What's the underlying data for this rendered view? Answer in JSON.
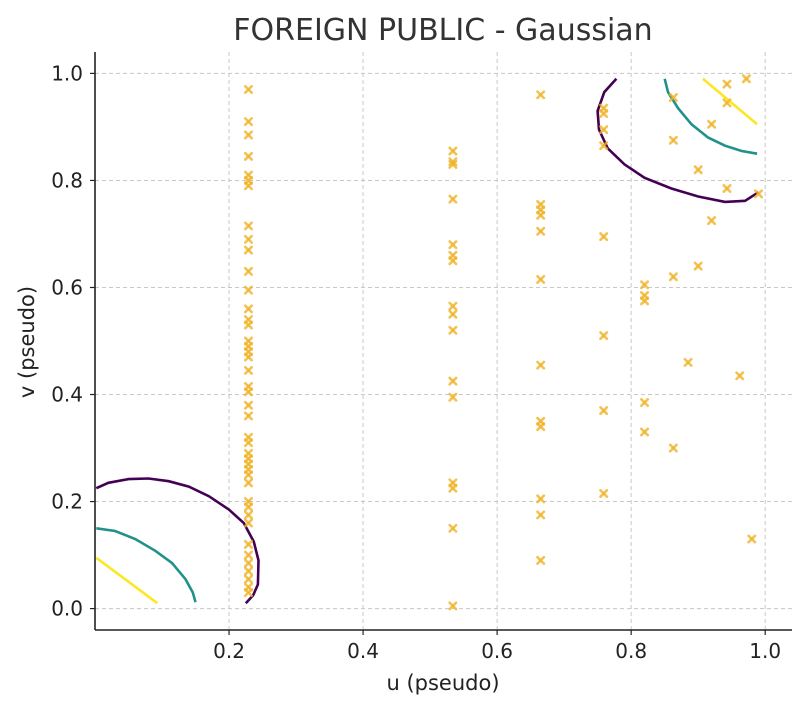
{
  "chart_data": {
    "type": "scatter",
    "title": "FOREIGN PUBLIC - Gaussian",
    "xlabel": "u (pseudo)",
    "ylabel": "v (pseudo)",
    "xlim": [
      0.0,
      1.04
    ],
    "ylim": [
      -0.04,
      1.04
    ],
    "xticks": [
      0.2,
      0.4,
      0.6,
      0.8,
      1.0
    ],
    "yticks": [
      0.0,
      0.2,
      0.4,
      0.6,
      0.8,
      1.0
    ],
    "xtick_labels": [
      "0.2",
      "0.4",
      "0.6",
      "0.8",
      "1.0"
    ],
    "ytick_labels": [
      "0.0",
      "0.2",
      "0.4",
      "0.6",
      "0.8",
      "1.0"
    ],
    "grid": true,
    "marker": "x",
    "point_color": "#f0b429",
    "points": [
      [
        0.229,
        0.97
      ],
      [
        0.229,
        0.91
      ],
      [
        0.229,
        0.885
      ],
      [
        0.229,
        0.845
      ],
      [
        0.229,
        0.81
      ],
      [
        0.229,
        0.8
      ],
      [
        0.229,
        0.79
      ],
      [
        0.229,
        0.715
      ],
      [
        0.229,
        0.69
      ],
      [
        0.229,
        0.67
      ],
      [
        0.229,
        0.63
      ],
      [
        0.229,
        0.595
      ],
      [
        0.229,
        0.56
      ],
      [
        0.229,
        0.54
      ],
      [
        0.229,
        0.53
      ],
      [
        0.229,
        0.5
      ],
      [
        0.229,
        0.49
      ],
      [
        0.229,
        0.48
      ],
      [
        0.229,
        0.47
      ],
      [
        0.229,
        0.445
      ],
      [
        0.229,
        0.415
      ],
      [
        0.229,
        0.405
      ],
      [
        0.229,
        0.38
      ],
      [
        0.229,
        0.36
      ],
      [
        0.229,
        0.32
      ],
      [
        0.229,
        0.31
      ],
      [
        0.229,
        0.29
      ],
      [
        0.229,
        0.28
      ],
      [
        0.229,
        0.27
      ],
      [
        0.229,
        0.26
      ],
      [
        0.229,
        0.25
      ],
      [
        0.229,
        0.235
      ],
      [
        0.229,
        0.2
      ],
      [
        0.229,
        0.19
      ],
      [
        0.229,
        0.175
      ],
      [
        0.229,
        0.16
      ],
      [
        0.229,
        0.12
      ],
      [
        0.229,
        0.1
      ],
      [
        0.229,
        0.085
      ],
      [
        0.229,
        0.07
      ],
      [
        0.229,
        0.055
      ],
      [
        0.229,
        0.04
      ],
      [
        0.229,
        0.03
      ],
      [
        0.534,
        0.855
      ],
      [
        0.534,
        0.835
      ],
      [
        0.534,
        0.83
      ],
      [
        0.534,
        0.765
      ],
      [
        0.534,
        0.68
      ],
      [
        0.534,
        0.66
      ],
      [
        0.534,
        0.65
      ],
      [
        0.534,
        0.565
      ],
      [
        0.534,
        0.55
      ],
      [
        0.534,
        0.52
      ],
      [
        0.534,
        0.425
      ],
      [
        0.534,
        0.395
      ],
      [
        0.534,
        0.235
      ],
      [
        0.534,
        0.225
      ],
      [
        0.534,
        0.15
      ],
      [
        0.534,
        0.005
      ],
      [
        0.665,
        0.96
      ],
      [
        0.665,
        0.755
      ],
      [
        0.665,
        0.745
      ],
      [
        0.665,
        0.735
      ],
      [
        0.665,
        0.705
      ],
      [
        0.665,
        0.615
      ],
      [
        0.665,
        0.455
      ],
      [
        0.665,
        0.35
      ],
      [
        0.665,
        0.34
      ],
      [
        0.665,
        0.205
      ],
      [
        0.665,
        0.175
      ],
      [
        0.665,
        0.09
      ],
      [
        0.759,
        0.935
      ],
      [
        0.759,
        0.925
      ],
      [
        0.759,
        0.895
      ],
      [
        0.759,
        0.865
      ],
      [
        0.759,
        0.695
      ],
      [
        0.759,
        0.51
      ],
      [
        0.759,
        0.37
      ],
      [
        0.759,
        0.215
      ],
      [
        0.82,
        0.605
      ],
      [
        0.82,
        0.585
      ],
      [
        0.82,
        0.575
      ],
      [
        0.82,
        0.385
      ],
      [
        0.82,
        0.33
      ],
      [
        0.863,
        0.955
      ],
      [
        0.863,
        0.875
      ],
      [
        0.863,
        0.62
      ],
      [
        0.863,
        0.3
      ],
      [
        0.885,
        0.46
      ],
      [
        0.9,
        0.82
      ],
      [
        0.9,
        0.64
      ],
      [
        0.92,
        0.905
      ],
      [
        0.92,
        0.725
      ],
      [
        0.943,
        0.98
      ],
      [
        0.943,
        0.945
      ],
      [
        0.943,
        0.785
      ],
      [
        0.962,
        0.435
      ],
      [
        0.972,
        0.99
      ],
      [
        0.98,
        0.13
      ],
      [
        0.99,
        0.775
      ]
    ],
    "contours": [
      {
        "color": "#440154",
        "segments": [
          [
            [
              0.002,
              0.225
            ],
            [
              0.02,
              0.235
            ],
            [
              0.05,
              0.242
            ],
            [
              0.08,
              0.243
            ],
            [
              0.11,
              0.238
            ],
            [
              0.14,
              0.228
            ],
            [
              0.17,
              0.21
            ],
            [
              0.2,
              0.185
            ],
            [
              0.222,
              0.16
            ],
            [
              0.237,
              0.125
            ],
            [
              0.244,
              0.09
            ],
            [
              0.243,
              0.045
            ],
            [
              0.236,
              0.025
            ],
            [
              0.225,
              0.01
            ]
          ],
          [
            [
              0.778,
              0.99
            ],
            [
              0.76,
              0.965
            ],
            [
              0.75,
              0.93
            ],
            [
              0.752,
              0.895
            ],
            [
              0.765,
              0.86
            ],
            [
              0.79,
              0.83
            ],
            [
              0.82,
              0.805
            ],
            [
              0.86,
              0.785
            ],
            [
              0.9,
              0.77
            ],
            [
              0.94,
              0.76
            ],
            [
              0.97,
              0.762
            ],
            [
              0.99,
              0.778
            ]
          ]
        ]
      },
      {
        "color": "#21918c",
        "segments": [
          [
            [
              0.002,
              0.15
            ],
            [
              0.03,
              0.145
            ],
            [
              0.06,
              0.13
            ],
            [
              0.09,
              0.108
            ],
            [
              0.115,
              0.085
            ],
            [
              0.135,
              0.055
            ],
            [
              0.146,
              0.03
            ],
            [
              0.15,
              0.012
            ]
          ],
          [
            [
              0.85,
              0.99
            ],
            [
              0.855,
              0.965
            ],
            [
              0.87,
              0.935
            ],
            [
              0.89,
              0.905
            ],
            [
              0.915,
              0.88
            ],
            [
              0.94,
              0.865
            ],
            [
              0.965,
              0.855
            ],
            [
              0.988,
              0.85
            ]
          ]
        ]
      },
      {
        "color": "#fde725",
        "segments": [
          [
            [
              0.002,
              0.095
            ],
            [
              0.093,
              0.01
            ]
          ],
          [
            [
              0.907,
              0.99
            ],
            [
              0.988,
              0.905
            ]
          ]
        ]
      }
    ]
  }
}
